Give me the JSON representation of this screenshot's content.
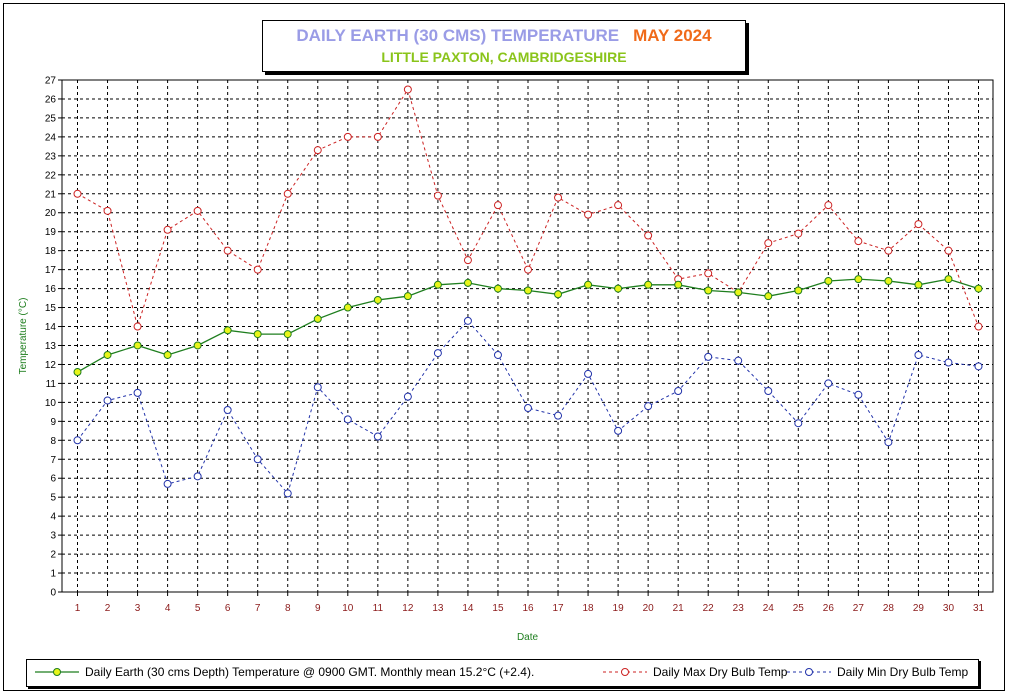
{
  "header": {
    "title": "DAILY EARTH (30 CMS) TEMPERATURE",
    "month": "MAY 2024",
    "subtitle": "LITTLE PAXTON, CAMBRIDGESHIRE"
  },
  "colors": {
    "earth": "#1e7e1e",
    "earth_marker": "#e8f51a",
    "max": "#cc2222",
    "min": "#2233aa",
    "axis_label": "#1e7e1e",
    "tick_label_x": "#8b1a1a"
  },
  "legend": {
    "earth": "Daily Earth (30 cms Depth) Temperature @ 0900 GMT.  Monthly mean 15.2°C (+2.4).",
    "max": "Daily Max Dry Bulb Temp",
    "min": "Daily Min Dry Bulb Temp"
  },
  "chart_data": {
    "type": "line",
    "xlabel": "Date",
    "ylabel": "Temperature (°C)",
    "xlim": [
      1,
      31
    ],
    "ylim": [
      0,
      27
    ],
    "grid": true,
    "legend_position": "bottom",
    "x": [
      1,
      2,
      3,
      4,
      5,
      6,
      7,
      8,
      9,
      10,
      11,
      12,
      13,
      14,
      15,
      16,
      17,
      18,
      19,
      20,
      21,
      22,
      23,
      24,
      25,
      26,
      27,
      28,
      29,
      30,
      31
    ],
    "series": [
      {
        "name": "Daily Earth (30 cms Depth) Temperature @ 0900 GMT.  Monthly mean 15.2°C (+2.4).",
        "key": "earth",
        "style": "solid",
        "values": [
          11.6,
          12.5,
          13.0,
          12.5,
          13.0,
          13.8,
          13.6,
          13.6,
          14.4,
          15.0,
          15.4,
          15.6,
          16.2,
          16.3,
          16.0,
          15.9,
          15.7,
          16.2,
          16.0,
          16.2,
          16.2,
          15.9,
          15.8,
          15.6,
          15.9,
          16.4,
          16.5,
          16.4,
          16.2,
          16.5,
          16.0
        ]
      },
      {
        "name": "Daily Max Dry Bulb Temp",
        "key": "max",
        "style": "dashed",
        "values": [
          21.0,
          20.1,
          14.0,
          19.1,
          20.1,
          18.0,
          17.0,
          21.0,
          23.3,
          24.0,
          24.0,
          26.5,
          20.9,
          17.5,
          20.4,
          17.0,
          20.8,
          19.9,
          20.4,
          18.8,
          16.5,
          16.8,
          15.8,
          18.4,
          18.9,
          20.4,
          18.5,
          18.0,
          19.4,
          18.0,
          14.0
        ]
      },
      {
        "name": "Daily Min Dry Bulb Temp",
        "key": "min",
        "style": "dashed",
        "values": [
          8.0,
          10.1,
          10.5,
          5.7,
          6.1,
          9.6,
          7.0,
          5.2,
          10.8,
          9.1,
          8.2,
          10.3,
          12.6,
          14.3,
          12.5,
          9.7,
          9.3,
          11.5,
          8.5,
          9.8,
          10.6,
          12.4,
          12.2,
          10.6,
          8.9,
          11.0,
          10.4,
          7.9,
          12.5,
          12.1,
          11.9
        ]
      }
    ]
  }
}
